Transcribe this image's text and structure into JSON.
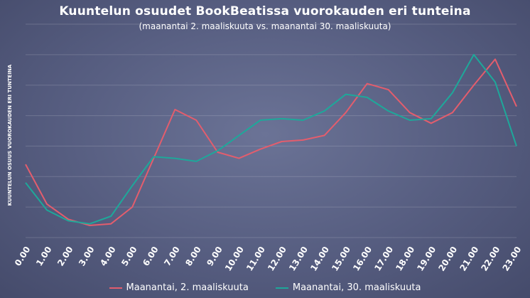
{
  "chart_data": {
    "type": "line",
    "title": "Kuuntelun osuudet BookBeatissa vuorokauden eri tunteina",
    "subtitle": "(maanantai 2. maaliskuuta vs. maanantai 30. maaliskuuta)",
    "ylabel": "KUUNTELUN OSUUS VUOROKAUDEN ERI TUNTEINA",
    "xlabel": "",
    "categories": [
      "0.00",
      "1.00",
      "2.00",
      "3.00",
      "4.00",
      "5.00",
      "6.00",
      "7.00",
      "8.00",
      "9.00",
      "10.00",
      "11.00",
      "12.00",
      "13.00",
      "14.00",
      "15.00",
      "16.00",
      "17.00",
      "18.00",
      "19.00",
      "20.00",
      "21.00",
      "22.00",
      "23.00"
    ],
    "ylim": [
      0,
      7
    ],
    "grid": true,
    "legend_position": "bottom",
    "series": [
      {
        "name": "Maanantai, 2. maaliskuuta",
        "color": "#e35d6d",
        "values": [
          2.4,
          1.1,
          0.6,
          0.4,
          0.45,
          1.0,
          2.6,
          4.2,
          3.85,
          2.8,
          2.6,
          2.9,
          3.15,
          3.2,
          3.35,
          4.1,
          5.05,
          4.85,
          4.1,
          3.75,
          4.1,
          5.0,
          5.85,
          4.3
        ]
      },
      {
        "name": "Maanantai, 30. maaliskuuta",
        "color": "#1ea89a",
        "values": [
          1.8,
          0.9,
          0.55,
          0.45,
          0.7,
          1.7,
          2.65,
          2.6,
          2.5,
          2.85,
          3.35,
          3.85,
          3.9,
          3.85,
          4.15,
          4.7,
          4.6,
          4.15,
          3.85,
          3.9,
          4.75,
          6.0,
          5.1,
          3.0
        ]
      }
    ]
  }
}
